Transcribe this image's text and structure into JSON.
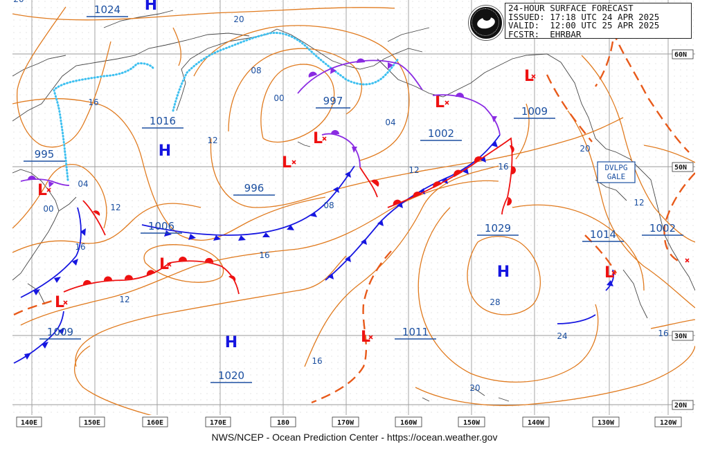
{
  "header": {
    "line1": "24-HOUR SURFACE FORECAST",
    "line2": "ISSUED: 17:18 UTC 24 APR 2025",
    "line3": "VALID:  12:00 UTC 25 APR 2025",
    "line4": "FCSTR:  EHRBAR"
  },
  "footer": "NWS/NCEP - Ocean Prediction Center - https://ocean.weather.gov",
  "colors": {
    "isobar": "#e07a1e",
    "label": "#1b4fa0",
    "cold": "#1616e0",
    "warm": "#e11",
    "occluded": "#8a2be2",
    "trough": "#e85a1a",
    "ice": "#3ec0f0",
    "grid": "#999999"
  },
  "longitude_labels": [
    "140E",
    "150E",
    "160E",
    "170E",
    "180",
    "170W",
    "160W",
    "150W",
    "140W",
    "130W",
    "120W"
  ],
  "latitude_labels": [
    "60N",
    "50N",
    "30N",
    "20N"
  ],
  "warning_box": [
    "DVLPG",
    "GALE"
  ],
  "pressure_labels": [
    "1024",
    "1016",
    "995",
    "1006",
    "1009",
    "1020",
    "996",
    "997",
    "1002",
    "1009",
    "1029",
    "1011",
    "1014",
    "1002"
  ],
  "isobar_labels": [
    "20",
    "16",
    "08",
    "00",
    "12",
    "04",
    "16",
    "12",
    "08",
    "04",
    "12",
    "16",
    "20",
    "12",
    "16",
    "24",
    "16",
    "28",
    "20",
    "12",
    "16"
  ],
  "high_centers": [
    "H",
    "H",
    "H",
    "H"
  ],
  "low_centers": [
    "L",
    "L",
    "L",
    "L",
    "L",
    "L",
    "L",
    "L",
    "L"
  ],
  "partial_top_label": "20"
}
